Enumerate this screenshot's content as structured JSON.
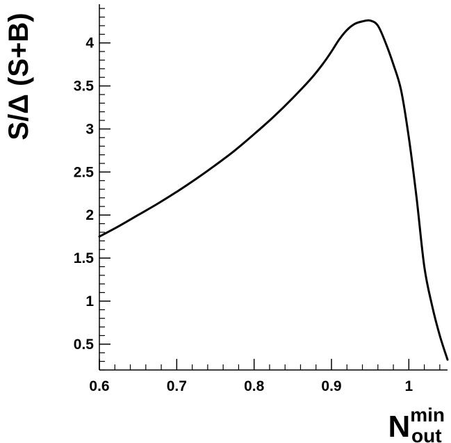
{
  "chart_data": {
    "type": "line",
    "title": "",
    "ylabel": "S/Δ (S+B)",
    "xlabel": {
      "base": "N",
      "superscript": "min",
      "subscript": "out"
    },
    "xlim": [
      0.6,
      1.05
    ],
    "ylim": [
      0.2,
      4.45
    ],
    "x_ticks": [
      0.6,
      0.7,
      0.8,
      0.9,
      1.0
    ],
    "x_tick_labels": [
      "0.6",
      "0.7",
      "0.8",
      "0.9",
      "1"
    ],
    "y_ticks": [
      0.5,
      1.0,
      1.5,
      2.0,
      2.5,
      3.0,
      3.5,
      4.0
    ],
    "y_tick_labels": [
      "0.5",
      "1",
      "1.5",
      "2",
      "2.5",
      "3",
      "3.5",
      "4"
    ],
    "grid": false,
    "legend": "none",
    "series": [
      {
        "color": "#000000",
        "x": [
          0.6,
          0.625,
          0.65,
          0.675,
          0.7,
          0.725,
          0.75,
          0.775,
          0.8,
          0.825,
          0.85,
          0.875,
          0.89,
          0.9,
          0.91,
          0.92,
          0.93,
          0.94,
          0.95,
          0.96,
          0.97,
          0.98,
          0.99,
          1.0,
          1.01,
          1.02,
          1.03,
          1.04,
          1.05
        ],
        "y": [
          1.75,
          1.87,
          2.0,
          2.13,
          2.27,
          2.42,
          2.58,
          2.75,
          2.94,
          3.14,
          3.36,
          3.6,
          3.77,
          3.9,
          4.04,
          4.15,
          4.22,
          4.25,
          4.26,
          4.2,
          4.0,
          3.75,
          3.45,
          2.9,
          2.2,
          1.4,
          0.95,
          0.6,
          0.32
        ]
      }
    ]
  }
}
